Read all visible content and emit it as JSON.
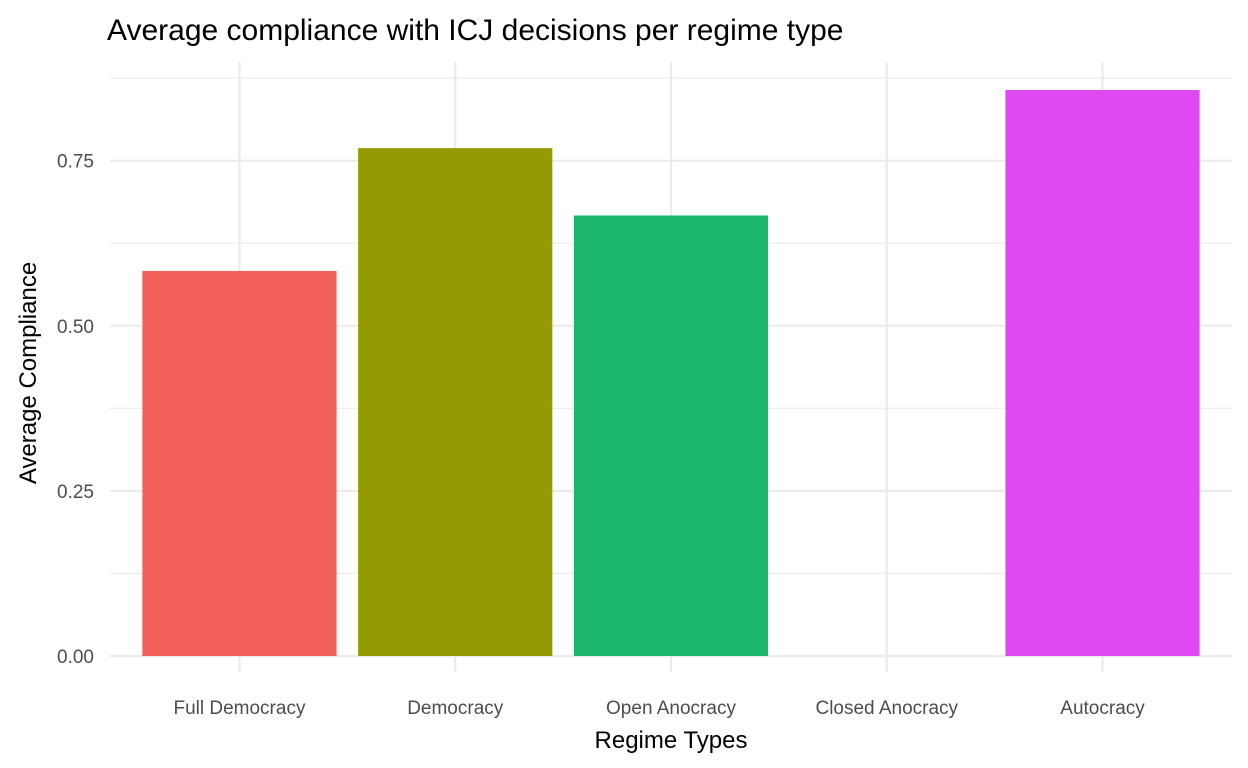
{
  "chart_data": {
    "type": "bar",
    "title": "Average compliance with ICJ decisions per regime type",
    "xlabel": "Regime Types",
    "ylabel": "Average Compliance",
    "categories": [
      "Full Democracy",
      "Democracy",
      "Open Anocracy",
      "Closed Anocracy",
      "Autocracy"
    ],
    "values": [
      0.583,
      0.769,
      0.667,
      0,
      0.857
    ],
    "colors": [
      "#F2605C",
      "#939A02",
      "#1CB66C",
      "#00A7FF",
      "#DE4AF0"
    ],
    "ylim": [
      0,
      0.857
    ],
    "y_ticks": [
      0,
      0.25,
      0.5,
      0.75
    ],
    "y_tick_labels": [
      "0.00",
      "0.25",
      "0.50",
      "0.75"
    ],
    "grid": true,
    "legend": "none"
  }
}
